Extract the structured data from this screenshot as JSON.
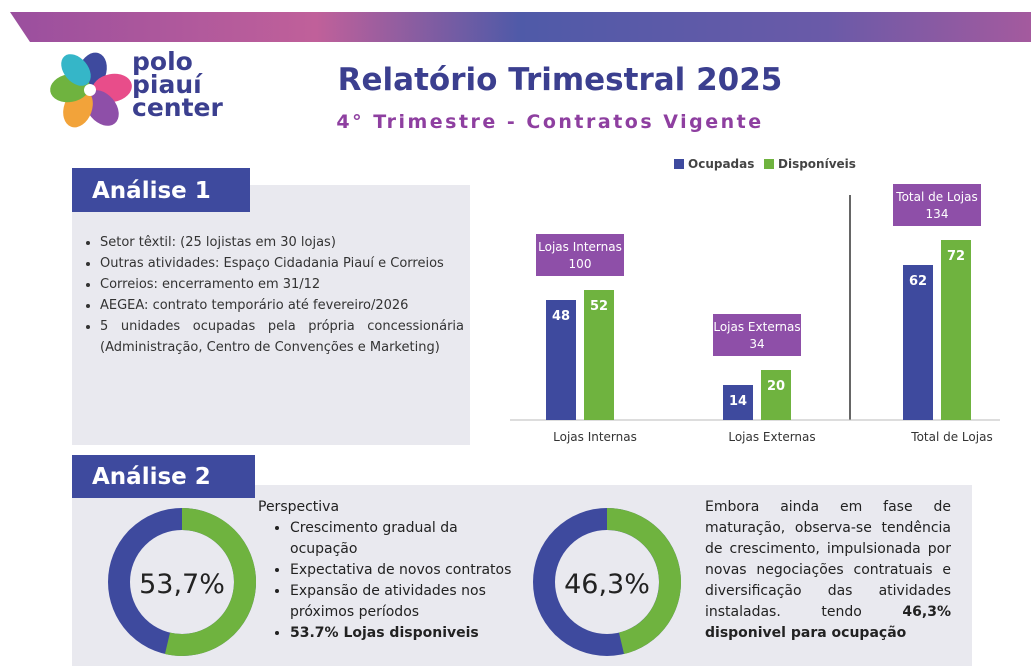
{
  "header": {
    "logo": [
      "polo",
      "piauí",
      "center"
    ],
    "title": "Relatório Trimestral 2025",
    "subtitle": "4° Trimestre - Contratos Vigente"
  },
  "analise1": {
    "title": "Análise 1",
    "bullets": [
      "Setor têxtil: (25 lojistas em 30 lojas)",
      "Outras atividades: Espaço Cidadania Piauí e Correios",
      "Correios: encerramento em 31/12",
      "AEGEA: contrato temporário até fevereiro/2026",
      "5 unidades ocupadas pela própria concessionária (Administração, Centro de Convenções e Marketing)"
    ]
  },
  "analise2": {
    "title": "Análise 2",
    "heading": "Perspectiva",
    "bullets": [
      "Crescimento gradual da ocupação",
      "Expectativa de novos contratos",
      "Expansão de atividades nos próximos períodos"
    ],
    "bullet_bold": "53.7% Lojas disponiveis",
    "paragraph": "Embora ainda em fase de maturação, observa-se tendência de crescimento, impulsionada por novas negociações contratuais e diversificação das atividades instaladas. tendo",
    "paragraph_bold": "46,3% disponivel para ocupação"
  },
  "chart_data": [
    {
      "type": "bar",
      "categories": [
        "Lojas Internas",
        "Lojas Externas",
        "Total de Lojas"
      ],
      "series": [
        {
          "name": "Ocupadas",
          "color": "#3e4a9e",
          "values": [
            48,
            14,
            62
          ]
        },
        {
          "name": "Disponíveis",
          "color": "#6fb33f",
          "values": [
            52,
            20,
            72
          ]
        }
      ],
      "annotations": [
        {
          "label": "Lojas Internas",
          "value": 100
        },
        {
          "label": "Lojas Externas",
          "value": 34
        },
        {
          "label": "Total de Lojas",
          "value": 134
        }
      ],
      "annotation_color": "#8e4fa8",
      "legend": "top"
    },
    {
      "type": "donut",
      "values": [
        53.7
      ],
      "value_labels": [
        "53,7%"
      ],
      "color": "#6fb33f",
      "track_color": "#3e4a9e"
    },
    {
      "type": "donut",
      "values": [
        46.3
      ],
      "value_labels": [
        "46,3%"
      ],
      "color": "#6fb33f",
      "track_color": "#3e4a9e"
    }
  ]
}
